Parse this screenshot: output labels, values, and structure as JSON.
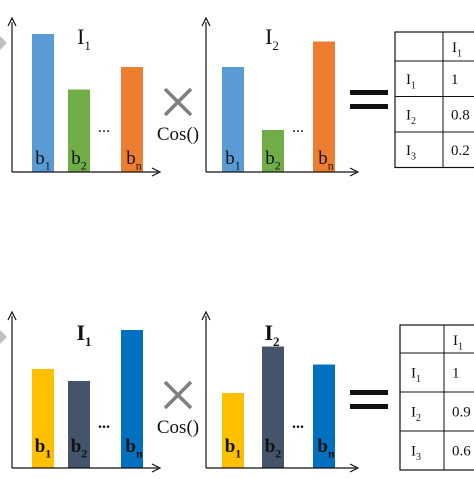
{
  "colors": {
    "blue_light": "#5b9bd5",
    "green": "#70ad47",
    "orange": "#ed7d31",
    "yellow": "#ffc000",
    "slate": "#44546a",
    "blue_strong": "#0070c0",
    "left_arrow_stub": "#bfbfbf"
  },
  "operator": {
    "times": "×",
    "cos": "Cos()",
    "equals": "=",
    "ellipsis": "..."
  },
  "rows": [
    {
      "style": "normal",
      "charts": [
        {
          "title": "I",
          "title_sub": "1",
          "bars": [
            {
              "label": "b",
              "sub": "1",
              "value": 0.92,
              "color": "blue_light"
            },
            {
              "label": "b",
              "sub": "2",
              "value": 0.55,
              "color": "green"
            },
            {
              "label": "b",
              "sub": "n",
              "value": 0.7,
              "color": "orange"
            }
          ]
        },
        {
          "title": "I",
          "title_sub": "2",
          "bars": [
            {
              "label": "b",
              "sub": "1",
              "value": 0.7,
              "color": "blue_light"
            },
            {
              "label": "b",
              "sub": "2",
              "value": 0.28,
              "color": "green"
            },
            {
              "label": "b",
              "sub": "n",
              "value": 0.87,
              "color": "orange"
            }
          ]
        }
      ],
      "table": {
        "header": {
          "text": "I",
          "sub": "1"
        },
        "rows": [
          {
            "label": "I",
            "sub": "1",
            "value": "1"
          },
          {
            "label": "I",
            "sub": "2",
            "value": "0.8"
          },
          {
            "label": "I",
            "sub": "3",
            "value": "0.2"
          }
        ]
      }
    },
    {
      "style": "bold",
      "charts": [
        {
          "title": "I",
          "title_sub": "1",
          "bars": [
            {
              "label": "b",
              "sub": "1",
              "value": 0.66,
              "color": "yellow"
            },
            {
              "label": "b",
              "sub": "2",
              "value": 0.58,
              "color": "slate"
            },
            {
              "label": "b",
              "sub": "n",
              "value": 0.92,
              "color": "blue_strong"
            }
          ]
        },
        {
          "title": "I",
          "title_sub": "2",
          "bars": [
            {
              "label": "b",
              "sub": "1",
              "value": 0.5,
              "color": "yellow"
            },
            {
              "label": "b",
              "sub": "2",
              "value": 0.81,
              "color": "slate"
            },
            {
              "label": "b",
              "sub": "n",
              "value": 0.69,
              "color": "blue_strong"
            }
          ]
        }
      ],
      "table": {
        "header": {
          "text": "I",
          "sub": "1"
        },
        "rows": [
          {
            "label": "I",
            "sub": "1",
            "value": "1"
          },
          {
            "label": "I",
            "sub": "2",
            "value": "0.9"
          },
          {
            "label": "I",
            "sub": "3",
            "value": "0.6"
          }
        ]
      }
    }
  ]
}
